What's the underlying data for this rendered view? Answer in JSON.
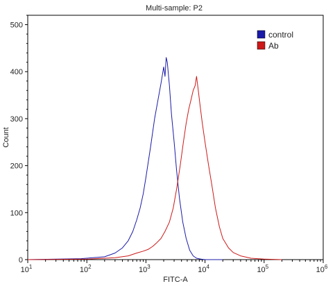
{
  "chart_data": {
    "type": "line",
    "title": "Multi-sample: P2",
    "xlabel": "FITC-A",
    "ylabel": "Count",
    "x_scale": "log",
    "xlim": [
      10,
      1000000
    ],
    "ylim": [
      0,
      520
    ],
    "x_ticks": [
      {
        "value": 10,
        "base": "10",
        "exp": "1"
      },
      {
        "value": 100,
        "base": "10",
        "exp": "2"
      },
      {
        "value": 1000,
        "base": "10",
        "exp": "3"
      },
      {
        "value": 10000,
        "base": "10",
        "exp": "4"
      },
      {
        "value": 100000,
        "base": "10",
        "exp": "5"
      },
      {
        "value": 1000000,
        "base": "10",
        "exp": "6"
      }
    ],
    "y_ticks": [
      0,
      100,
      200,
      300,
      400,
      500
    ],
    "legend": {
      "position": "top-right"
    },
    "series": [
      {
        "name": "control",
        "color": "#1a1aa8",
        "x": [
          10,
          80,
          200,
          300,
          400,
          500,
          600,
          700,
          800,
          900,
          1000,
          1200,
          1400,
          1600,
          1800,
          2000,
          2100,
          2200,
          2300,
          2500,
          2700,
          3000,
          3300,
          3700,
          4200,
          4800,
          5500,
          6300,
          7200,
          8500,
          10000,
          14000,
          20000
        ],
        "y": [
          0,
          2,
          6,
          14,
          25,
          40,
          60,
          85,
          110,
          140,
          175,
          240,
          300,
          340,
          375,
          410,
          390,
          430,
          420,
          370,
          310,
          250,
          190,
          130,
          80,
          45,
          20,
          8,
          3,
          1,
          0,
          0,
          0
        ]
      },
      {
        "name": "Ab",
        "color": "#cc1818",
        "x": [
          10,
          100,
          300,
          500,
          700,
          900,
          1100,
          1300,
          1500,
          1800,
          2100,
          2500,
          2900,
          3300,
          3800,
          4300,
          4800,
          5300,
          5800,
          6300,
          6800,
          7200,
          7700,
          8200,
          9000,
          10000,
          11500,
          13000,
          15000,
          17500,
          20000,
          25000,
          30000,
          40000,
          60000,
          100000,
          200000
        ],
        "y": [
          0,
          1,
          4,
          8,
          14,
          18,
          22,
          28,
          35,
          45,
          60,
          80,
          110,
          150,
          200,
          250,
          290,
          320,
          340,
          360,
          370,
          390,
          360,
          330,
          290,
          250,
          200,
          160,
          110,
          70,
          45,
          25,
          15,
          8,
          3,
          1,
          0
        ]
      }
    ]
  }
}
